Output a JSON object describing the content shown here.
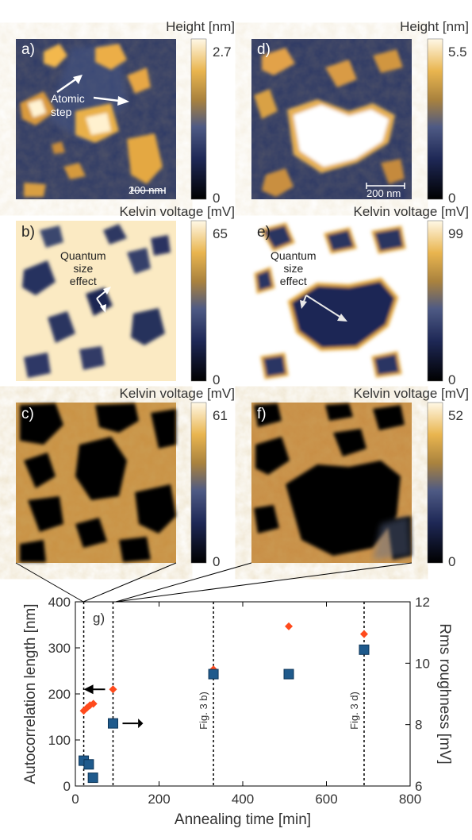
{
  "figure": {
    "panels": [
      {
        "label": "a)",
        "colorbar_title": "Height [nm]",
        "cb_max": "2.7",
        "cb_min": "0",
        "scalebar": "200 nm",
        "annotation": [
          "Atomic",
          "step"
        ]
      },
      {
        "label": "d)",
        "colorbar_title": "Height [nm]",
        "cb_max": "5.5",
        "cb_min": "0",
        "scalebar": "200 nm"
      },
      {
        "label": "b)",
        "colorbar_title": "Kelvin voltage [mV]",
        "cb_max": "65",
        "cb_min": "0",
        "annotation": [
          "Quantum",
          "size",
          "effect"
        ]
      },
      {
        "label": "e)",
        "colorbar_title": "Kelvin voltage [mV]",
        "cb_max": "99",
        "cb_min": "0",
        "annotation": [
          "Quantum",
          "size",
          "effect"
        ]
      },
      {
        "label": "c)",
        "colorbar_title": "Kelvin voltage [mV]",
        "cb_max": "61",
        "cb_min": "0"
      },
      {
        "label": "f)",
        "colorbar_title": "Kelvin voltage [mV]",
        "cb_max": "52",
        "cb_min": "0"
      }
    ]
  },
  "chart_data": {
    "type": "scatter",
    "panel_label": "g)",
    "xlabel": "Annealing time [min]",
    "ylabel_left": "Autocorrelation length [nm]",
    "ylabel_right": "Rms roughness [mV]",
    "xlim": [
      0,
      800
    ],
    "ylim_left": [
      0,
      400
    ],
    "ylim_right": [
      6,
      12
    ],
    "x_ticks": [
      "0",
      "200",
      "400",
      "600",
      "800"
    ],
    "y_left_ticks": [
      "0",
      "100",
      "200",
      "300",
      "400"
    ],
    "y_right_ticks": [
      "6",
      "8",
      "10",
      "12"
    ],
    "vlines": [
      {
        "x": 20,
        "label": ""
      },
      {
        "x": 90,
        "label": ""
      },
      {
        "x": 330,
        "label": "Fig. 3 b)"
      },
      {
        "x": 690,
        "label": "Fig. 3 d)"
      }
    ],
    "series": [
      {
        "axis": "right",
        "marker": "diamond",
        "color": "#ff4a1c",
        "points": [
          [
            20,
            8.45
          ],
          [
            28,
            8.55
          ],
          [
            35,
            8.63
          ],
          [
            43,
            8.68
          ],
          [
            90,
            9.15
          ],
          [
            330,
            9.8
          ],
          [
            510,
            11.2
          ],
          [
            690,
            10.95
          ]
        ]
      },
      {
        "axis": "left",
        "marker": "square",
        "color": "#1f5a8c",
        "points": [
          [
            20,
            55
          ],
          [
            32,
            47
          ],
          [
            42,
            18
          ],
          [
            90,
            136
          ],
          [
            330,
            243
          ],
          [
            510,
            243
          ],
          [
            690,
            296
          ]
        ]
      }
    ]
  }
}
